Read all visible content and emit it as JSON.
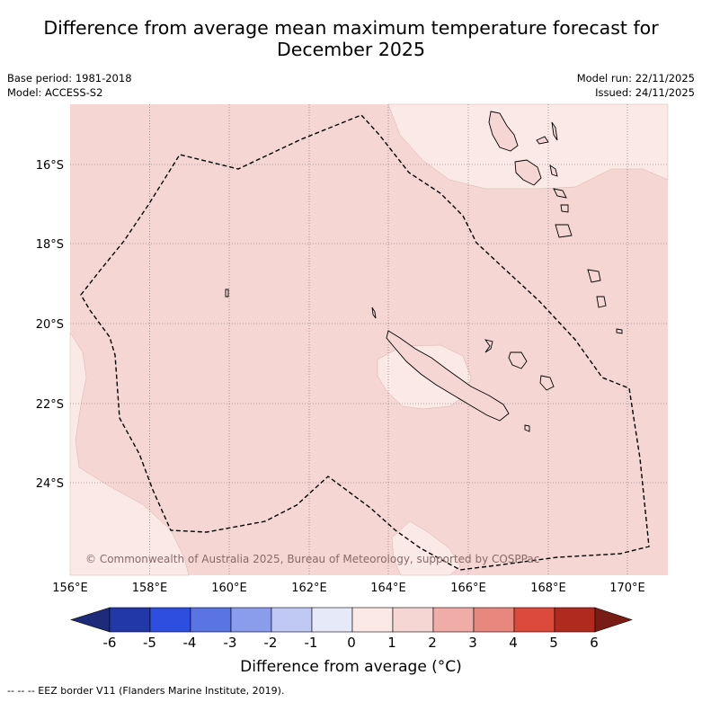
{
  "title_line1": "Difference from average mean maximum temperature forecast for",
  "title_line2": "December 2025",
  "meta_left": {
    "base_period": "Base period: 1981-2018",
    "model": "Model: ACCESS-S2"
  },
  "meta_right": {
    "model_run": "Model run: 22/11/2025",
    "issued": "Issued: 24/11/2025"
  },
  "axes": {
    "lat_labels": [
      "16°S",
      "18°S",
      "20°S",
      "22°S",
      "24°S"
    ],
    "lon_labels": [
      "156°E",
      "158°E",
      "160°E",
      "162°E",
      "164°E",
      "166°E",
      "168°E",
      "170°E"
    ]
  },
  "copyright": "© Commonwealth of Australia 2025, Bureau of Meteorology, supported by COSPPac",
  "colorbar": {
    "ticks": [
      "-6",
      "-5",
      "-4",
      "-3",
      "-2",
      "-1",
      "0",
      "1",
      "2",
      "3",
      "4",
      "5",
      "6"
    ],
    "colors": [
      "#1e2a7a",
      "#2238a8",
      "#2e4ee0",
      "#5a74e4",
      "#8a9cec",
      "#c0c8f4",
      "#e6eaf8",
      "#fbe9e6",
      "#f5d6d2",
      "#f0aca6",
      "#e8877d",
      "#dc4a3c",
      "#b02a20",
      "#7a1c16"
    ],
    "label": "Difference from average (°C)"
  },
  "colors": {
    "base_fill": "#f5d6d2",
    "light_fill": "#fbe9e6"
  },
  "footer": "--  --  -- EEZ border V11 (Flanders Marine Institute, 2019)."
}
